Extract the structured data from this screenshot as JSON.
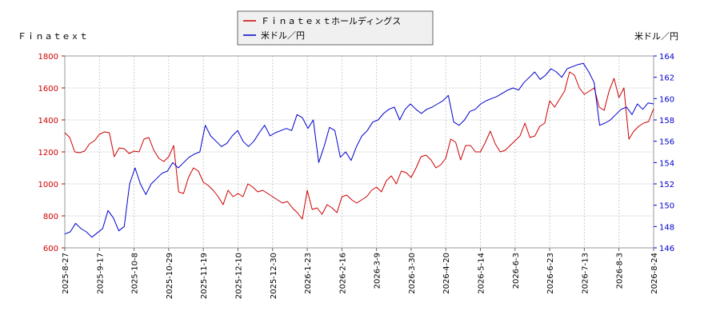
{
  "chart_data": {
    "type": "line",
    "left_axis_label": "Ｆｉｎａｔｅｘｔ",
    "right_axis_label": "米ドル／円",
    "x_tick_labels": [
      "2025-8-27",
      "2025-9-17",
      "2025-10-8",
      "2025-10-29",
      "2025-11-19",
      "2025-12-10",
      "2025-12-30",
      "2026-1-23",
      "2026-2-16",
      "2026-3-9",
      "2026-3-30",
      "2026-4-20",
      "2026-5-14",
      "2026-6-3",
      "2026-6-23",
      "2026-7-13",
      "2026-8-3",
      "2026-8-24"
    ],
    "y_left": {
      "ticks": [
        "600",
        "800",
        "1000",
        "1200",
        "1400",
        "1600",
        "1800"
      ],
      "min": 600,
      "max": 1800
    },
    "y_right": {
      "ticks": [
        "146",
        "148",
        "150",
        "152",
        "154",
        "156",
        "158",
        "160",
        "162",
        "164"
      ],
      "min": 146,
      "max": 164
    },
    "grid": true,
    "legend_position": "top-center",
    "series": [
      {
        "name": "Ｆｉｎａｔｅｘｔホールディングス",
        "axis": "left",
        "color": "#cc0000",
        "values": [
          1320,
          1290,
          1200,
          1195,
          1205,
          1250,
          1270,
          1310,
          1325,
          1320,
          1170,
          1225,
          1220,
          1190,
          1205,
          1200,
          1280,
          1290,
          1210,
          1160,
          1140,
          1170,
          1240,
          950,
          940,
          1040,
          1100,
          1080,
          1010,
          990,
          960,
          920,
          870,
          960,
          920,
          940,
          920,
          1000,
          980,
          950,
          960,
          940,
          920,
          900,
          880,
          890,
          850,
          820,
          780,
          960,
          840,
          850,
          810,
          870,
          850,
          820,
          920,
          930,
          900,
          880,
          900,
          920,
          960,
          980,
          950,
          1020,
          1050,
          1000,
          1080,
          1070,
          1040,
          1100,
          1170,
          1180,
          1150,
          1100,
          1120,
          1160,
          1280,
          1260,
          1150,
          1240,
          1240,
          1200,
          1200,
          1260,
          1330,
          1250,
          1200,
          1210,
          1240,
          1270,
          1300,
          1380,
          1290,
          1300,
          1360,
          1380,
          1520,
          1480,
          1530,
          1580,
          1700,
          1680,
          1600,
          1560,
          1580,
          1600,
          1480,
          1460,
          1580,
          1660,
          1540,
          1600,
          1280,
          1330,
          1360,
          1380,
          1390,
          1470
        ]
      },
      {
        "name": "米ドル／円",
        "axis": "right",
        "color": "#0000cc",
        "values": [
          147.3,
          147.5,
          148.3,
          147.8,
          147.5,
          147.0,
          147.4,
          147.8,
          149.5,
          148.8,
          147.6,
          148.0,
          152.0,
          153.5,
          152.0,
          151.0,
          152.0,
          152.5,
          153.0,
          153.2,
          154.0,
          153.5,
          154.0,
          154.5,
          154.8,
          155.0,
          157.5,
          156.5,
          156.0,
          155.5,
          155.8,
          156.5,
          157.0,
          156.0,
          155.5,
          156.0,
          156.8,
          157.5,
          156.5,
          156.8,
          157.0,
          157.2,
          157.0,
          158.5,
          158.2,
          157.2,
          158.0,
          154.0,
          155.5,
          157.3,
          157.0,
          154.5,
          155.0,
          154.2,
          155.5,
          156.5,
          157.0,
          157.8,
          158.0,
          158.6,
          159.0,
          159.2,
          158.0,
          159.0,
          159.5,
          159.0,
          158.6,
          159.0,
          159.2,
          159.5,
          159.8,
          160.3,
          157.8,
          157.5,
          158.0,
          158.8,
          159.0,
          159.5,
          159.8,
          160.0,
          160.2,
          160.5,
          160.8,
          161.0,
          160.8,
          161.5,
          162.0,
          162.5,
          161.8,
          162.2,
          162.8,
          162.5,
          162.0,
          162.8,
          163.0,
          163.2,
          163.3,
          162.5,
          161.5,
          157.5,
          157.7,
          158.0,
          158.5,
          159.0,
          159.2,
          158.5,
          159.5,
          159.0,
          159.6,
          159.5
        ]
      }
    ]
  }
}
